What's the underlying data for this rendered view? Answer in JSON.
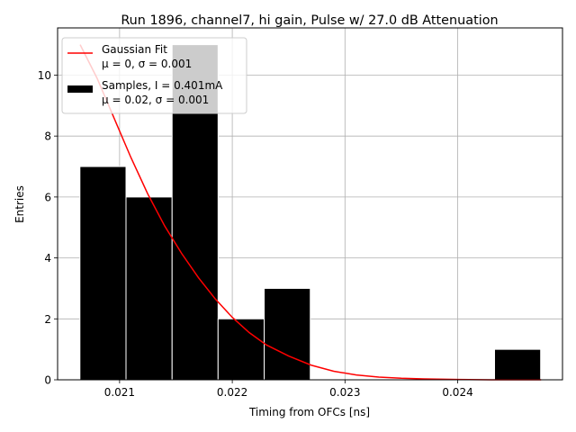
{
  "chart_data": {
    "type": "histogram",
    "title": "Run 1896, channel7, hi gain, Pulse w/ 27.0 dB Attenuation",
    "xlabel": "Timing from OFCs [ns]",
    "ylabel": "Entries",
    "xlim": [
      0.02045,
      0.02493
    ],
    "ylim": [
      0,
      11.55
    ],
    "grid": true,
    "x_ticks": [
      0.021,
      0.022,
      0.023,
      0.024
    ],
    "x_tick_labels": [
      "0.021",
      "0.022",
      "0.023",
      "0.024"
    ],
    "y_ticks": [
      0,
      2,
      4,
      6,
      8,
      10
    ],
    "y_tick_labels": [
      "0",
      "2",
      "4",
      "6",
      "8",
      "10"
    ],
    "bins": [
      {
        "x0": 0.020648,
        "x1": 0.021057,
        "count": 7
      },
      {
        "x0": 0.021057,
        "x1": 0.021466,
        "count": 6
      },
      {
        "x0": 0.021466,
        "x1": 0.021874,
        "count": 11
      },
      {
        "x0": 0.021874,
        "x1": 0.022283,
        "count": 2
      },
      {
        "x0": 0.022283,
        "x1": 0.022692,
        "count": 3
      },
      {
        "x0": 0.022692,
        "x1": 0.023101,
        "count": 0
      },
      {
        "x0": 0.023101,
        "x1": 0.02351,
        "count": 0
      },
      {
        "x0": 0.02351,
        "x1": 0.023918,
        "count": 0
      },
      {
        "x0": 0.023918,
        "x1": 0.024327,
        "count": 0
      },
      {
        "x0": 0.024327,
        "x1": 0.024736,
        "count": 1
      }
    ],
    "bar_color": "#000000",
    "bar_edge_color": "#ffffff",
    "fit_curve": {
      "color": "#ff0000",
      "x": [
        0.02065,
        0.0208,
        0.02095,
        0.0211,
        0.02125,
        0.0214,
        0.02155,
        0.0217,
        0.02185,
        0.022,
        0.02215,
        0.0223,
        0.0225,
        0.0227,
        0.0229,
        0.0231,
        0.0233,
        0.0235,
        0.0237,
        0.024,
        0.0243,
        0.02474
      ],
      "y": [
        11.0,
        9.9,
        8.6,
        7.3,
        6.1,
        5.05,
        4.15,
        3.35,
        2.65,
        2.05,
        1.55,
        1.15,
        0.78,
        0.48,
        0.28,
        0.16,
        0.09,
        0.05,
        0.03,
        0.01,
        0.0,
        0.0
      ]
    },
    "legend": {
      "placement": "upper left",
      "entries": [
        {
          "kind": "line",
          "color": "#ff0000",
          "line1": "Gaussian Fit",
          "line2": "μ = 0, σ = 0.001"
        },
        {
          "kind": "patch",
          "color": "#000000",
          "line1": "Samples, I = 0.401mA",
          "line2": "μ = 0.02, σ = 0.001"
        }
      ]
    }
  }
}
